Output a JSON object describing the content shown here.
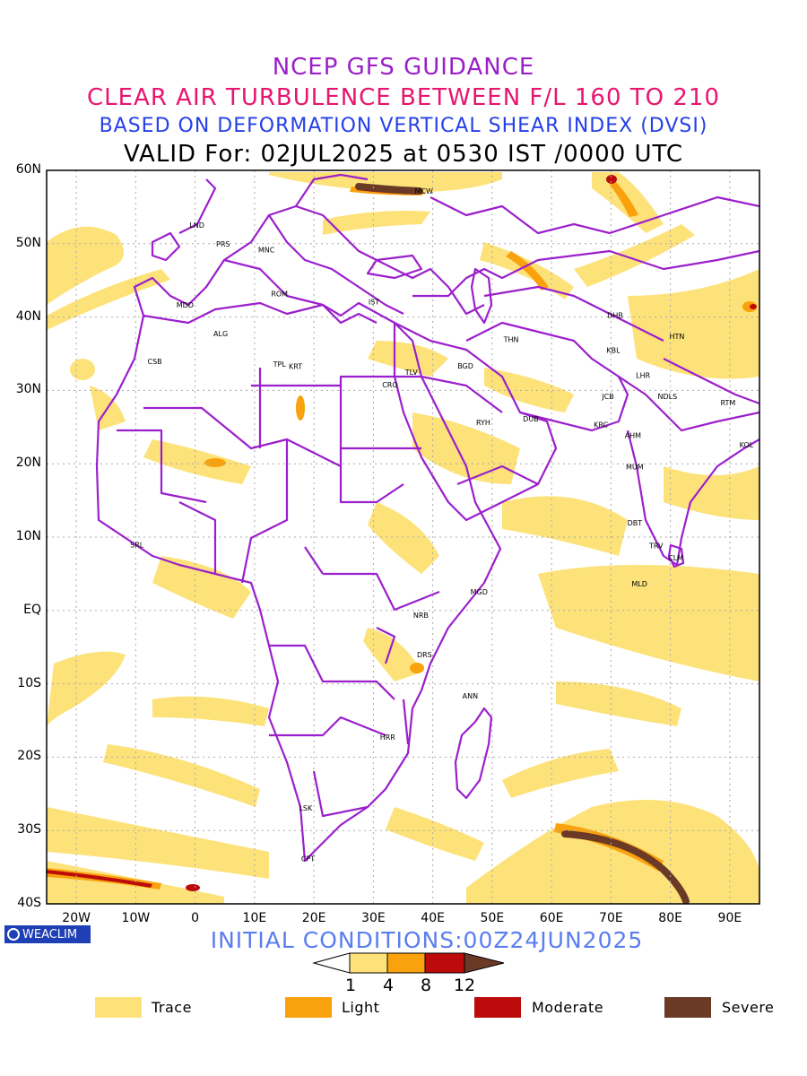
{
  "titles": {
    "line1": "NCEP GFS GUIDANCE",
    "line2": "CLEAR AIR TURBULENCE BETWEEN F/L 160 TO 210",
    "line3": "BASED ON DEFORMATION VERTICAL SHEAR INDEX (DVSI)",
    "line4": "VALID For: 02JUL2025 at 0530 IST /0000 UTC"
  },
  "colors": {
    "title1": "#9b1fc9",
    "title2": "#e8156f",
    "title3": "#2540e6",
    "title4": "#000000",
    "trace": "#fde27a",
    "light": "#f9a20d",
    "moderate": "#bd0a0a",
    "severe": "#6b3a26",
    "borders": "#9b1fcc"
  },
  "map": {
    "lat_labels": [
      "60N",
      "50N",
      "40N",
      "30N",
      "20N",
      "10N",
      "EQ",
      "10S",
      "20S",
      "30S",
      "40S"
    ],
    "lon_labels": [
      "20W",
      "10W",
      "0",
      "10E",
      "20E",
      "30E",
      "40E",
      "50E",
      "60E",
      "70E",
      "80E",
      "90E"
    ],
    "cities": [
      {
        "code": "MCW",
        "lon": 38.5,
        "lat": 56.8
      },
      {
        "code": "LND",
        "lon": 0.3,
        "lat": 52.2
      },
      {
        "code": "PRS",
        "lon": 4.7,
        "lat": 49.6
      },
      {
        "code": "MNC",
        "lon": 12.0,
        "lat": 48.8
      },
      {
        "code": "ROM",
        "lon": 14.2,
        "lat": 42.8
      },
      {
        "code": "IST",
        "lon": 30.1,
        "lat": 41.7
      },
      {
        "code": "MDD",
        "lon": -1.7,
        "lat": 41.3
      },
      {
        "code": "ALG",
        "lon": 4.3,
        "lat": 37.4
      },
      {
        "code": "CSB",
        "lon": -6.8,
        "lat": 33.6
      },
      {
        "code": "TPL",
        "lon": 14.2,
        "lat": 33.2
      },
      {
        "code": "KRT",
        "lon": 16.9,
        "lat": 32.9
      },
      {
        "code": "THN",
        "lon": 53.2,
        "lat": 36.6
      },
      {
        "code": "DHB",
        "lon": 70.7,
        "lat": 39.9
      },
      {
        "code": "HTN",
        "lon": 81.1,
        "lat": 37.0
      },
      {
        "code": "BGD",
        "lon": 45.5,
        "lat": 33.0
      },
      {
        "code": "KBL",
        "lon": 70.4,
        "lat": 35.1
      },
      {
        "code": "TLV",
        "lon": 36.4,
        "lat": 32.1
      },
      {
        "code": "CRO",
        "lon": 32.8,
        "lat": 30.4
      },
      {
        "code": "LHR",
        "lon": 75.4,
        "lat": 31.7
      },
      {
        "code": "JCB",
        "lon": 69.5,
        "lat": 28.8
      },
      {
        "code": "NDLS",
        "lon": 79.5,
        "lat": 28.8
      },
      {
        "code": "RTM",
        "lon": 89.7,
        "lat": 28.0
      },
      {
        "code": "RYH",
        "lon": 48.5,
        "lat": 25.3
      },
      {
        "code": "DUB",
        "lon": 56.5,
        "lat": 25.8
      },
      {
        "code": "KRC",
        "lon": 68.3,
        "lat": 25.0
      },
      {
        "code": "AHM",
        "lon": 73.7,
        "lat": 23.5
      },
      {
        "code": "KOL",
        "lon": 92.8,
        "lat": 22.2
      },
      {
        "code": "MUM",
        "lon": 74.0,
        "lat": 19.2
      },
      {
        "code": "DBT",
        "lon": 74.0,
        "lat": 11.6
      },
      {
        "code": "SRL",
        "lon": -9.8,
        "lat": 8.6
      },
      {
        "code": "TRV",
        "lon": 77.6,
        "lat": 8.5
      },
      {
        "code": "CLM",
        "lon": 80.9,
        "lat": 6.8
      },
      {
        "code": "MLD",
        "lon": 74.8,
        "lat": 3.3
      },
      {
        "code": "MGD",
        "lon": 47.8,
        "lat": 2.2
      },
      {
        "code": "NRB",
        "lon": 38.0,
        "lat": -1.0
      },
      {
        "code": "DRS",
        "lon": 38.6,
        "lat": -6.4
      },
      {
        "code": "ANN",
        "lon": 46.3,
        "lat": -12.0
      },
      {
        "code": "HRR",
        "lon": 32.4,
        "lat": -17.6
      },
      {
        "code": "LSK",
        "lon": 18.6,
        "lat": -27.3
      },
      {
        "code": "CPT",
        "lon": 19.0,
        "lat": -34.2
      }
    ]
  },
  "badge": {
    "text": "WEACLIM"
  },
  "initial_conditions": "INITIAL CONDITIONS:00Z24JUN2025",
  "colorbar": {
    "ticks": [
      "1",
      "4",
      "8",
      "12"
    ]
  },
  "legend": [
    {
      "label": "Trace",
      "color": "#fde27a"
    },
    {
      "label": "Light",
      "color": "#f9a20d"
    },
    {
      "label": "Moderate",
      "color": "#bd0a0a"
    },
    {
      "label": "Severe",
      "color": "#6b3a26"
    }
  ]
}
